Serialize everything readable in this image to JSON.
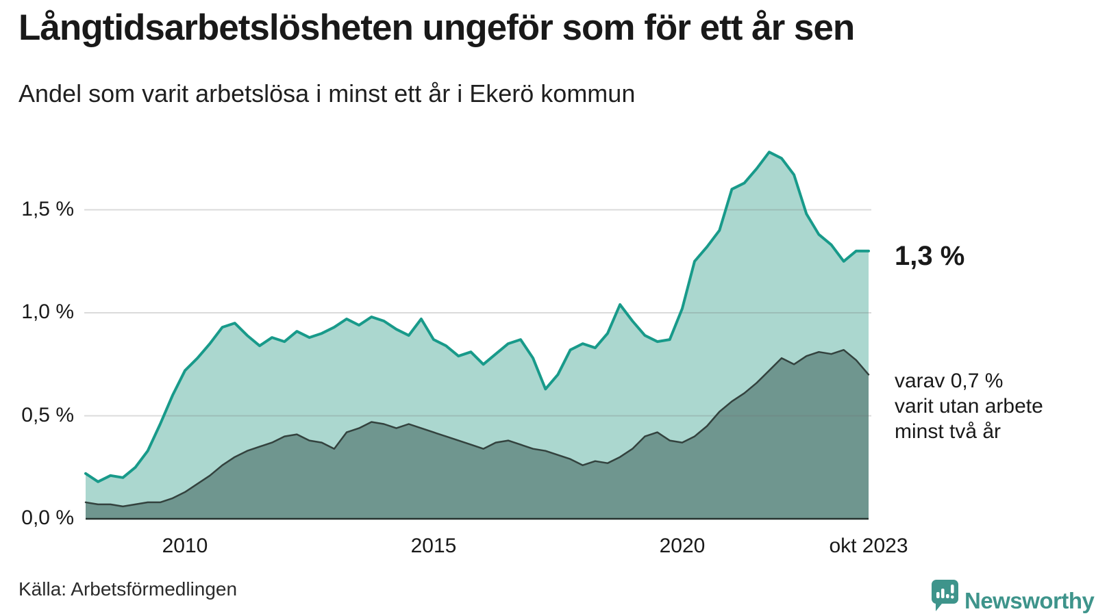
{
  "header": {
    "title": "Långtidsarbetslösheten ungeför som för ett år sen",
    "subtitle": "Andel som varit arbetslösa i minst ett år i Ekerö kommun"
  },
  "chart_data": {
    "type": "area",
    "title": "Långtidsarbetslösheten ungeför som för ett år sen",
    "subtitle": "Andel som varit arbetslösa i minst ett år i Ekerö kommun",
    "unit": "%",
    "grid": true,
    "legend": "none",
    "x_range": [
      2008,
      2023.75
    ],
    "ylim": [
      0,
      1.85
    ],
    "x_ticks": [
      {
        "value": 2010,
        "label": "2010"
      },
      {
        "value": 2015,
        "label": "2015"
      },
      {
        "value": 2020,
        "label": "2020"
      },
      {
        "value": 2023.75,
        "label": "okt 2023"
      }
    ],
    "y_ticks": [
      {
        "value": 0,
        "label": "0,0 %"
      },
      {
        "value": 0.5,
        "label": "0,5 %"
      },
      {
        "value": 1,
        "label": "1,0 %"
      },
      {
        "value": 1.5,
        "label": "1,5 %"
      }
    ],
    "x": [
      2008,
      2008.25,
      2008.5,
      2008.75,
      2009,
      2009.25,
      2009.5,
      2009.75,
      2010,
      2010.25,
      2010.5,
      2010.75,
      2011,
      2011.25,
      2011.5,
      2011.75,
      2012,
      2012.25,
      2012.5,
      2012.75,
      2013,
      2013.25,
      2013.5,
      2013.75,
      2014,
      2014.25,
      2014.5,
      2014.75,
      2015,
      2015.25,
      2015.5,
      2015.75,
      2016,
      2016.25,
      2016.5,
      2016.75,
      2017,
      2017.25,
      2017.5,
      2017.75,
      2018,
      2018.25,
      2018.5,
      2018.75,
      2019,
      2019.25,
      2019.5,
      2019.75,
      2020,
      2020.25,
      2020.5,
      2020.75,
      2021,
      2021.25,
      2021.5,
      2021.75,
      2022,
      2022.25,
      2022.5,
      2022.75,
      2023,
      2023.25,
      2023.5,
      2023.75
    ],
    "series": [
      {
        "name": "Andel arbetslösa minst ett år",
        "end_value": 1.3,
        "end_label": "1,3 %",
        "line_color": "#189a8a",
        "fill_color": "#abd7cf",
        "line_width": 4,
        "values": [
          0.22,
          0.18,
          0.21,
          0.2,
          0.25,
          0.33,
          0.46,
          0.6,
          0.72,
          0.78,
          0.85,
          0.93,
          0.95,
          0.89,
          0.84,
          0.88,
          0.86,
          0.91,
          0.88,
          0.9,
          0.93,
          0.97,
          0.94,
          0.98,
          0.96,
          0.92,
          0.89,
          0.97,
          0.87,
          0.84,
          0.79,
          0.81,
          0.75,
          0.8,
          0.85,
          0.87,
          0.78,
          0.63,
          0.7,
          0.82,
          0.85,
          0.83,
          0.9,
          1.04,
          0.96,
          0.89,
          0.86,
          0.87,
          1.02,
          1.25,
          1.32,
          1.4,
          1.6,
          1.63,
          1.7,
          1.78,
          1.75,
          1.67,
          1.48,
          1.38,
          1.33,
          1.25,
          1.3,
          1.3
        ]
      },
      {
        "name": "Andel utan arbete minst två år",
        "end_value": 0.7,
        "end_label": "varav 0,7 % varit utan arbete minst två år",
        "line_color": "#33423e",
        "fill_color": "#6f968f",
        "line_width": 2.5,
        "values": [
          0.08,
          0.07,
          0.07,
          0.06,
          0.07,
          0.08,
          0.08,
          0.1,
          0.13,
          0.17,
          0.21,
          0.26,
          0.3,
          0.33,
          0.35,
          0.37,
          0.4,
          0.41,
          0.38,
          0.37,
          0.34,
          0.42,
          0.44,
          0.47,
          0.46,
          0.44,
          0.46,
          0.44,
          0.42,
          0.4,
          0.38,
          0.36,
          0.34,
          0.37,
          0.38,
          0.36,
          0.34,
          0.33,
          0.31,
          0.29,
          0.26,
          0.28,
          0.27,
          0.3,
          0.34,
          0.4,
          0.42,
          0.38,
          0.37,
          0.4,
          0.45,
          0.52,
          0.57,
          0.61,
          0.66,
          0.72,
          0.78,
          0.75,
          0.79,
          0.81,
          0.8,
          0.82,
          0.77,
          0.7
        ]
      }
    ]
  },
  "annotations": {
    "series1_value": "1,3 %",
    "series2_line1": "varav 0,7 %",
    "series2_line2": "varit utan arbete",
    "series2_line3": "minst två år"
  },
  "source": {
    "label": "Källa: Arbetsförmedlingen"
  },
  "logo": {
    "text": "Newsworthy",
    "color": "#3e948b"
  },
  "colors": {
    "accent_teal": "#189a8a",
    "fill_light": "#abd7cf",
    "fill_dark": "#6f968f",
    "line_dark": "#33423e",
    "gridline": "#d9d9d9",
    "axis": "#26322f",
    "text": "#191919"
  }
}
